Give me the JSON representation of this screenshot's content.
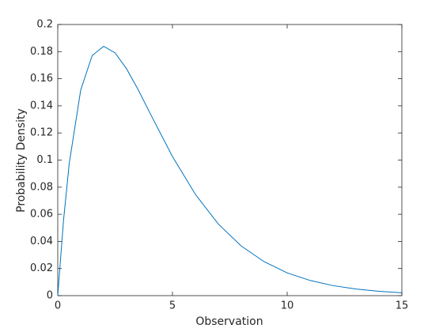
{
  "chart_data": {
    "type": "line",
    "xlabel": "Observation",
    "ylabel": "Probability Density",
    "x": [
      0,
      0.25,
      0.5,
      1,
      1.5,
      2,
      2.5,
      3,
      3.5,
      4,
      5,
      6,
      7,
      8,
      9,
      10,
      11,
      12,
      13,
      14,
      15
    ],
    "series": [
      {
        "color": "#0072bd",
        "values": [
          0,
          0.0552,
          0.0974,
          0.1516,
          0.1771,
          0.1839,
          0.1791,
          0.1673,
          0.1521,
          0.1353,
          0.1026,
          0.0747,
          0.0528,
          0.0366,
          0.025,
          0.0168,
          0.0112,
          0.0074,
          0.0049,
          0.0032,
          0.0021
        ]
      }
    ],
    "xlim": [
      0,
      15
    ],
    "xticks": [
      0,
      5,
      10,
      15
    ],
    "ylim": [
      0,
      0.2
    ],
    "yticks": [
      0,
      0.02,
      0.04,
      0.06,
      0.08,
      0.1,
      0.12,
      0.14,
      0.16,
      0.18,
      0.2
    ],
    "grid": false
  }
}
